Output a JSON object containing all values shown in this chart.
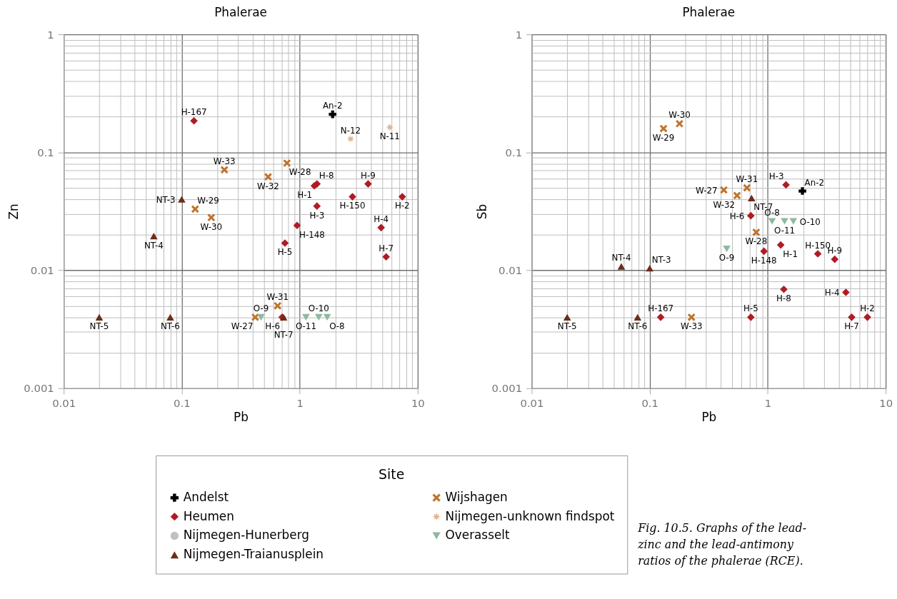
{
  "chart_data": [
    {
      "type": "scatter",
      "title": "Phalerae",
      "xlabel": "Pb",
      "ylabel": "Zn",
      "log": "xy",
      "grid": true,
      "legend": "bottom",
      "legend_title": "Site",
      "xlim": [
        0.01,
        10
      ],
      "ylim": [
        0.001,
        1
      ],
      "xticks": [
        0.01,
        0.1,
        1,
        10
      ],
      "yticks": [
        0.001,
        0.01,
        0.1,
        1
      ],
      "series": [
        {
          "name": "Andelst",
          "color": "#000000",
          "marker": "cross",
          "x": [
            1.9
          ],
          "values": [
            0.21
          ],
          "value_labels": [
            "An-2"
          ]
        },
        {
          "name": "Heumen",
          "color": "#b01c24",
          "marker": "diamond",
          "x": [
            0.127,
            1.4,
            1.33,
            3.8,
            2.8,
            7.4,
            1.4,
            4.9,
            0.95,
            0.75,
            5.4,
            0.71
          ],
          "values": [
            0.185,
            0.054,
            0.052,
            0.054,
            0.042,
            0.042,
            0.035,
            0.023,
            0.024,
            0.017,
            0.013,
            0.004
          ],
          "value_labels": [
            "H-167",
            "H-8",
            "H-1",
            "H-9",
            "H-150",
            "H-2",
            "H-3",
            "H-4",
            "H-148",
            "H-5",
            "H-7",
            "H-6"
          ]
        },
        {
          "name": "Nijmegen-Hunerberg",
          "color": "#c0c0c0",
          "marker": "circle"
        },
        {
          "name": "Nijmegen-Traianusplein",
          "color": "#6b2d1a",
          "marker": "triangle",
          "x": [
            0.1,
            0.058,
            0.02,
            0.08,
            0.73
          ],
          "values": [
            0.04,
            0.0195,
            0.004,
            0.004,
            0.004
          ],
          "value_labels": [
            "NT-3",
            "NT-4",
            "NT-5",
            "NT-6",
            "NT-7"
          ]
        },
        {
          "name": "Wijshagen",
          "color": "#c0732a",
          "marker": "x",
          "x": [
            0.23,
            0.78,
            0.54,
            0.13,
            0.178,
            0.65,
            0.42
          ],
          "values": [
            0.071,
            0.081,
            0.062,
            0.033,
            0.028,
            0.005,
            0.004
          ],
          "value_labels": [
            "W-33",
            "W-28",
            "W-32",
            "W-29",
            "W-30",
            "W-31",
            "W-27"
          ]
        },
        {
          "name": "Nijmegen-unknown findspot",
          "color": "#dfb893",
          "marker": "star",
          "x": [
            2.7,
            5.8
          ],
          "values": [
            0.13,
            0.163
          ],
          "value_labels": [
            "N-12",
            "N-11"
          ]
        },
        {
          "name": "Overasselt",
          "color": "#8fb8a0",
          "marker": "triangle-down",
          "x": [
            0.47,
            1.13,
            1.45,
            1.71
          ],
          "values": [
            0.004,
            0.004,
            0.004,
            0.004
          ],
          "value_labels": [
            "O-9",
            "O-11",
            "O-10",
            "O-8"
          ]
        }
      ]
    },
    {
      "type": "scatter",
      "title": "Phalerae",
      "xlabel": "Pb",
      "ylabel": "Sb",
      "log": "xy",
      "grid": true,
      "xlim": [
        0.01,
        10
      ],
      "ylim": [
        0.001,
        1
      ],
      "xticks": [
        0.01,
        0.1,
        1,
        10
      ],
      "yticks": [
        0.001,
        0.01,
        0.1,
        1
      ],
      "annotations": [
        "Fig. 10.5. Graphs of the lead-zinc and the lead-antimony ratios of the phalerae (RCE)."
      ],
      "series": [
        {
          "name": "Andelst",
          "color": "#000000",
          "marker": "cross",
          "x": [
            1.97
          ],
          "values": [
            0.047
          ],
          "value_labels": [
            "An-2"
          ]
        },
        {
          "name": "Heumen",
          "color": "#b01c24",
          "marker": "diamond",
          "x": [
            1.43,
            0.72,
            0.93,
            1.29,
            2.66,
            3.7,
            1.37,
            4.6,
            0.124,
            0.72,
            5.15,
            7.0
          ],
          "values": [
            0.053,
            0.029,
            0.0145,
            0.0164,
            0.0138,
            0.0124,
            0.0069,
            0.0065,
            0.004,
            0.004,
            0.004,
            0.004
          ],
          "value_labels": [
            "H-3",
            "H-6",
            "H-148",
            "H-1",
            "H-150",
            "H-9",
            "H-8",
            "H-4",
            "H-167",
            "H-5",
            "H-7",
            "H-2"
          ]
        },
        {
          "name": "Nijmegen-Traianusplein",
          "color": "#6b2d1a",
          "marker": "triangle",
          "x": [
            0.73,
            0.0575,
            0.1,
            0.02,
            0.079
          ],
          "values": [
            0.041,
            0.0108,
            0.0104,
            0.004,
            0.004
          ],
          "value_labels": [
            "NT-7",
            "NT-4",
            "NT-3",
            "NT-5",
            "NT-6"
          ]
        },
        {
          "name": "Wijshagen",
          "color": "#c0732a",
          "marker": "x",
          "x": [
            0.179,
            0.131,
            0.667,
            0.425,
            0.55,
            0.8,
            0.226
          ],
          "values": [
            0.175,
            0.159,
            0.05,
            0.048,
            0.043,
            0.021,
            0.004
          ],
          "value_labels": [
            "W-30",
            "W-29",
            "W-31",
            "W-27",
            "W-32",
            "W-28",
            "W-33"
          ]
        },
        {
          "name": "Overasselt",
          "color": "#8fb8a0",
          "marker": "triangle-down",
          "x": [
            1.09,
            1.39,
            1.65,
            0.45
          ],
          "values": [
            0.026,
            0.026,
            0.026,
            0.0152
          ],
          "value_labels": [
            "O-8",
            "O-11",
            "O-10",
            "O-9"
          ]
        }
      ]
    }
  ]
}
